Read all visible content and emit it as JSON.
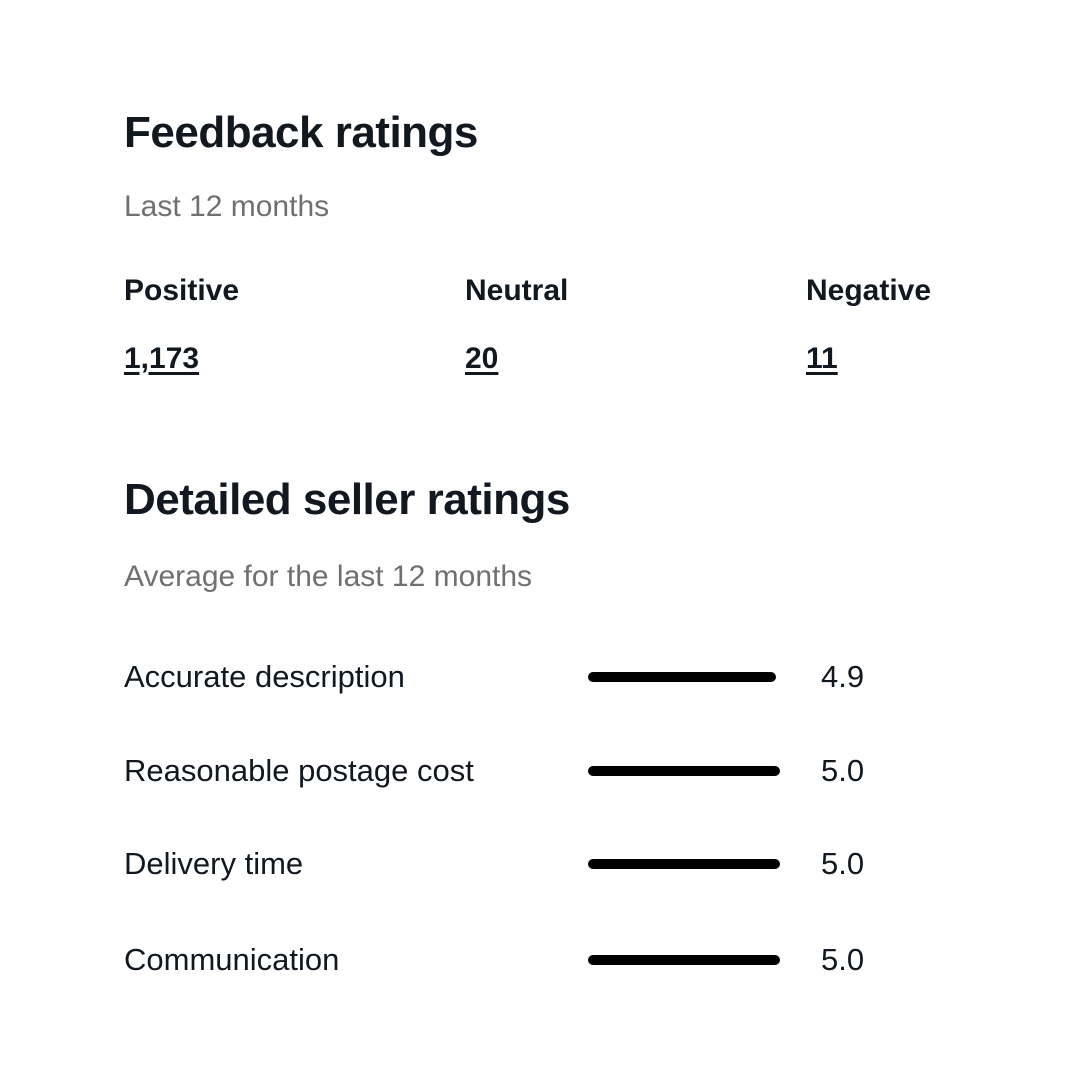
{
  "feedback": {
    "title": "Feedback ratings",
    "subtitle": "Last 12 months",
    "counts": [
      {
        "label": "Positive",
        "value": "1,173"
      },
      {
        "label": "Neutral",
        "value": "20"
      },
      {
        "label": "Negative",
        "value": "11"
      }
    ]
  },
  "detailed": {
    "title": "Detailed seller ratings",
    "subtitle": "Average for the last 12 months",
    "max_score": 5,
    "ratings": [
      {
        "label": "Accurate description",
        "value": "4.9",
        "score": 4.9
      },
      {
        "label": "Reasonable postage cost",
        "value": "5.0",
        "score": 5.0
      },
      {
        "label": "Delivery time",
        "value": "5.0",
        "score": 5.0
      },
      {
        "label": "Communication",
        "value": "5.0",
        "score": 5.0
      }
    ]
  },
  "colors": {
    "text": "#111820",
    "muted": "#707070",
    "bar": "#000000"
  }
}
